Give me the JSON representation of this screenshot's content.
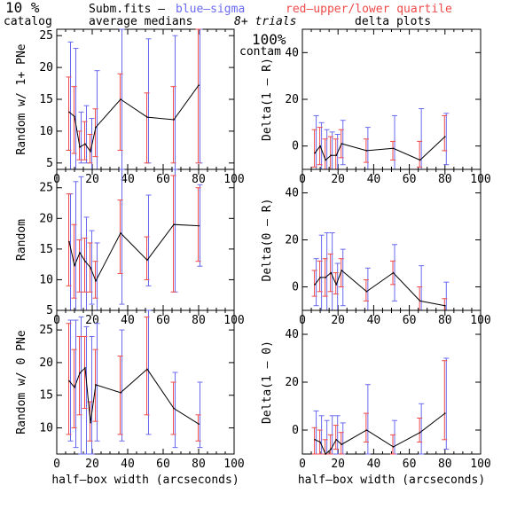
{
  "header": {
    "percent": "10 %",
    "catalog": "catalog",
    "subm": "Subm.fits  –",
    "avg": "average medians",
    "blue": "blue–sigma",
    "red": "red–upper/lower quartile",
    "trials": "8+ trials",
    "delta": "delta plots",
    "contam_pct": "100%",
    "contam": "contam"
  },
  "colors": {
    "line": "#000000",
    "sigma": "#6a6af0",
    "quartile": "#f04a4a"
  },
  "chart_data": [
    {
      "type": "line",
      "panel": "left-top",
      "ylabel": "Random w/ 1+ PNe",
      "xlabel": "",
      "xlim": [
        0,
        100
      ],
      "ylim": [
        4,
        26
      ],
      "xticks": [
        0,
        20,
        40,
        60,
        80,
        100
      ],
      "yticks": [
        5,
        10,
        15,
        20,
        25
      ],
      "x": [
        7,
        10,
        13,
        16,
        19,
        22,
        36,
        51,
        66,
        80
      ],
      "y": [
        13.0,
        12.3,
        7.5,
        8.0,
        6.8,
        10.6,
        15.0,
        12.2,
        11.8,
        17.2
      ],
      "sigma": [
        [
          4.0,
          24.0
        ],
        [
          4.0,
          23.0
        ],
        [
          5.0,
          13.0
        ],
        [
          5.0,
          14.0
        ],
        [
          4.0,
          12.0
        ],
        [
          4.0,
          19.5
        ],
        [
          4.0,
          26.0
        ],
        [
          5.0,
          24.5
        ],
        [
          4.0,
          25.0
        ],
        [
          5.0,
          26.0
        ]
      ],
      "quartile": [
        [
          7.0,
          18.5
        ],
        [
          6.5,
          17.0
        ],
        [
          5.5,
          10.0
        ],
        [
          5.5,
          11.5
        ],
        [
          5.0,
          9.5
        ],
        [
          6.0,
          13.5
        ],
        [
          7.0,
          19.0
        ],
        [
          5.0,
          16.0
        ],
        [
          5.0,
          17.0
        ],
        [
          5.0,
          26.0
        ]
      ]
    },
    {
      "type": "line",
      "panel": "right-top",
      "ylabel": "Delta(1 – R)",
      "xlabel": "",
      "xlim": [
        0,
        100
      ],
      "ylim": [
        -10,
        50
      ],
      "xticks": [
        0,
        20,
        40,
        60,
        80,
        100
      ],
      "yticks": [
        0,
        20,
        40
      ],
      "x": [
        7,
        10,
        13,
        16,
        19,
        22,
        36,
        51,
        66,
        80
      ],
      "y": [
        -3.0,
        0.0,
        -6.0,
        -4.0,
        -4.0,
        1.0,
        -2.0,
        -1.0,
        -6.0,
        4.0
      ],
      "sigma": [
        [
          -10,
          13
        ],
        [
          -10,
          10
        ],
        [
          -10,
          7
        ],
        [
          -10,
          6
        ],
        [
          -10,
          5
        ],
        [
          -8,
          11
        ],
        [
          -10,
          8
        ],
        [
          -10,
          13
        ],
        [
          -10,
          16
        ],
        [
          -8,
          14
        ]
      ],
      "quartile": [
        [
          -9,
          7
        ],
        [
          -8,
          8
        ],
        [
          -10,
          3
        ],
        [
          -10,
          4
        ],
        [
          -10,
          3
        ],
        [
          -5,
          7
        ],
        [
          -7,
          3
        ],
        [
          -6,
          2
        ],
        [
          -9,
          2
        ],
        [
          -2,
          13
        ]
      ]
    },
    {
      "type": "line",
      "panel": "left-middle",
      "ylabel": "Random",
      "xlabel": "",
      "xlim": [
        0,
        100
      ],
      "ylim": [
        5,
        28
      ],
      "xticks": [
        0,
        20,
        40,
        60,
        80,
        100
      ],
      "yticks": [
        5,
        10,
        15,
        20,
        25
      ],
      "x": [
        7,
        10,
        13,
        16,
        19,
        22,
        36,
        51,
        66,
        80
      ],
      "y": [
        16.2,
        12.3,
        14.4,
        13.0,
        12.0,
        9.8,
        17.6,
        13.2,
        19.0,
        18.8
      ],
      "sigma": [
        [
          5.0,
          24.0
        ],
        [
          5.0,
          26.0
        ],
        [
          5.0,
          26.8
        ],
        [
          5.0,
          20.2
        ],
        [
          6.0,
          18.0
        ],
        [
          5.0,
          16.0
        ],
        [
          6.0,
          28.0
        ],
        [
          9.0,
          23.8
        ],
        [
          8.0,
          28.0
        ],
        [
          12.2,
          25.5
        ]
      ],
      "quartile": [
        [
          9.0,
          24.0
        ],
        [
          7.0,
          19.0
        ],
        [
          8.0,
          16.5
        ],
        [
          8.0,
          16.8
        ],
        [
          8.0,
          16.0
        ],
        [
          7.0,
          13.0
        ],
        [
          11.0,
          23.0
        ],
        [
          10.0,
          17.0
        ],
        [
          8.0,
          27.0
        ],
        [
          13.0,
          25.0
        ]
      ]
    },
    {
      "type": "line",
      "panel": "right-middle",
      "ylabel": "Delta(0 – R)",
      "xlabel": "",
      "xlim": [
        0,
        100
      ],
      "ylim": [
        -10,
        50
      ],
      "xticks": [
        0,
        20,
        40,
        60,
        80,
        100
      ],
      "yticks": [
        0,
        20,
        40
      ],
      "x": [
        7,
        10,
        13,
        16,
        19,
        22,
        36,
        51,
        66,
        80
      ],
      "y": [
        1.0,
        4.0,
        4.0,
        6.0,
        1.0,
        7.0,
        -2.0,
        6.0,
        -6.0,
        -8.0
      ],
      "sigma": [
        [
          -8,
          12
        ],
        [
          -10,
          22
        ],
        [
          -10,
          23
        ],
        [
          -10,
          23
        ],
        [
          -10,
          10
        ],
        [
          -8,
          16
        ],
        [
          -10,
          8
        ],
        [
          -6,
          18
        ],
        [
          -10,
          9
        ],
        [
          -10,
          2
        ]
      ],
      "quartile": [
        [
          -4,
          7
        ],
        [
          -2,
          11
        ],
        [
          -4,
          12
        ],
        [
          -2,
          14
        ],
        [
          -3,
          6
        ],
        [
          0,
          12
        ],
        [
          -6,
          3
        ],
        [
          1,
          11
        ],
        [
          -10,
          0
        ],
        [
          -10,
          -5
        ]
      ]
    },
    {
      "type": "line",
      "panel": "left-bottom",
      "ylabel": "Random w/ 0 PNe",
      "xlabel": "half–box width (arcseconds)",
      "xlim": [
        0,
        100
      ],
      "ylim": [
        6,
        28
      ],
      "xticks": [
        0,
        20,
        40,
        60,
        80,
        100
      ],
      "yticks": [
        10,
        15,
        20,
        25
      ],
      "x": [
        7,
        10,
        13,
        16,
        19,
        22,
        36,
        51,
        66,
        80
      ],
      "y": [
        17.2,
        16.2,
        18.4,
        19.2,
        10.8,
        16.6,
        15.4,
        19.0,
        13.0,
        10.6
      ],
      "sigma": [
        [
          8.0,
          26.5
        ],
        [
          7.0,
          26.5
        ],
        [
          6.0,
          27.0
        ],
        [
          6.0,
          25.5
        ],
        [
          6.0,
          24.0
        ],
        [
          8.0,
          26.0
        ],
        [
          8.0,
          25.0
        ],
        [
          9.0,
          28.0
        ],
        [
          7.0,
          18.5
        ],
        [
          7.0,
          17.0
        ]
      ],
      "quartile": [
        [
          9.0,
          26.0
        ],
        [
          10.0,
          22.0
        ],
        [
          12.0,
          24.0
        ],
        [
          13.0,
          24.0
        ],
        [
          8.0,
          14.0
        ],
        [
          11.0,
          22.0
        ],
        [
          9.0,
          21.0
        ],
        [
          12.0,
          27.0
        ],
        [
          9.0,
          17.0
        ],
        [
          8.0,
          12.0
        ]
      ]
    },
    {
      "type": "line",
      "panel": "right-bottom",
      "ylabel": "Delta(1 – 0)",
      "xlabel": "half–box width (arcseconds)",
      "xlim": [
        0,
        100
      ],
      "ylim": [
        -10,
        50
      ],
      "xticks": [
        0,
        20,
        40,
        60,
        80,
        100
      ],
      "yticks": [
        0,
        20,
        40
      ],
      "x": [
        7,
        10,
        13,
        16,
        19,
        22,
        36,
        51,
        66,
        80
      ],
      "y": [
        -4.0,
        -5.0,
        -10.0,
        -8.0,
        -4.0,
        -6.0,
        0.0,
        -7.0,
        -1.0,
        7.0
      ],
      "sigma": [
        [
          -10,
          8
        ],
        [
          -10,
          6
        ],
        [
          -10,
          4
        ],
        [
          -10,
          6
        ],
        [
          -10,
          6
        ],
        [
          -10,
          3
        ],
        [
          -10,
          19
        ],
        [
          -10,
          4
        ],
        [
          -10,
          11
        ],
        [
          -8,
          30
        ]
      ],
      "quartile": [
        [
          -10,
          1
        ],
        [
          -10,
          0
        ],
        [
          -10,
          -4
        ],
        [
          -10,
          -2
        ],
        [
          -8,
          2
        ],
        [
          -10,
          -1
        ],
        [
          -5,
          7
        ],
        [
          -10,
          -2
        ],
        [
          -5,
          5
        ],
        [
          -4,
          29
        ]
      ]
    }
  ]
}
